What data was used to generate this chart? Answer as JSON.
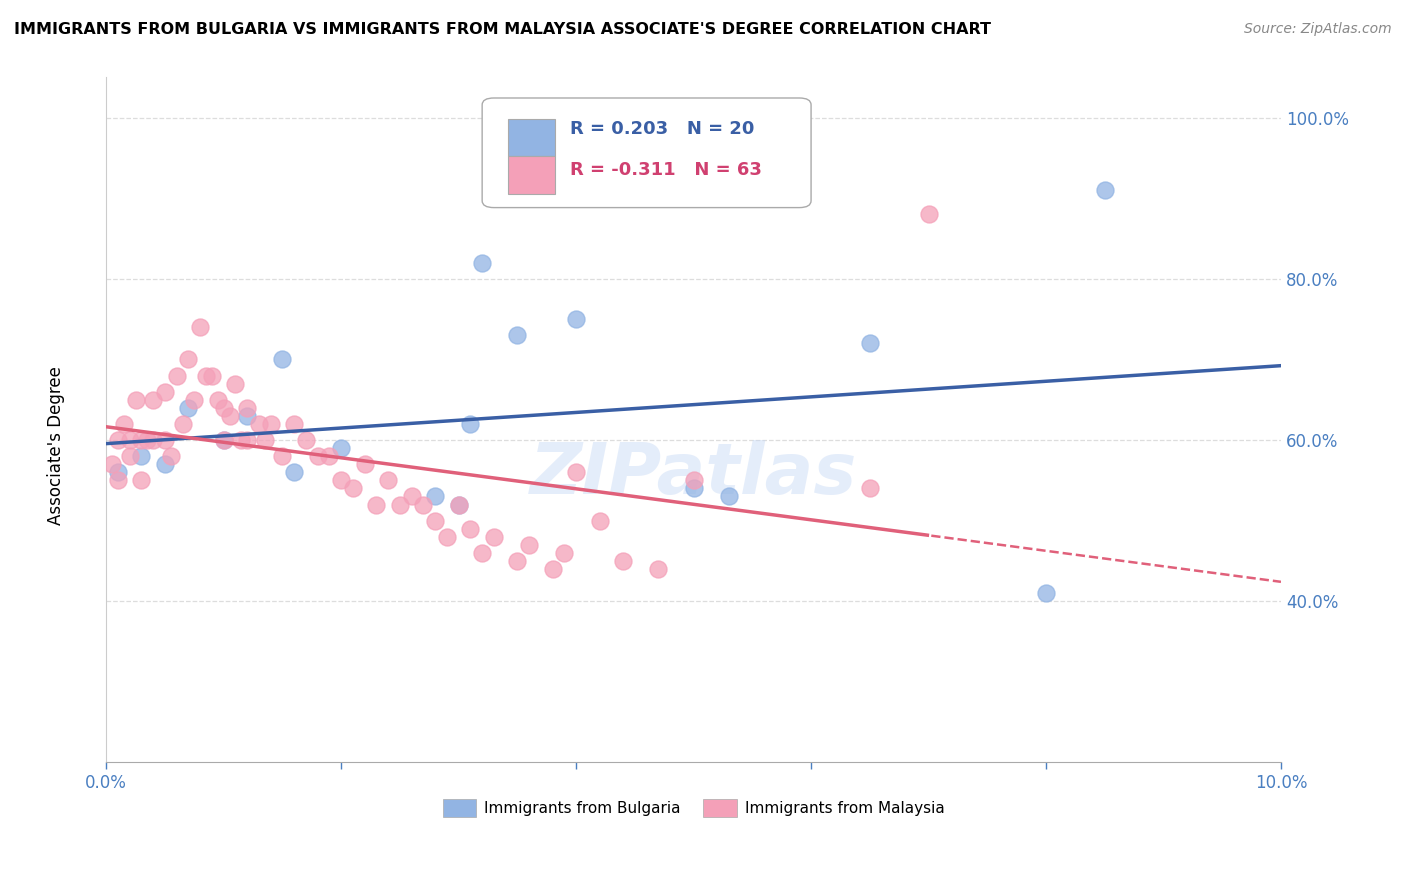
{
  "title": "IMMIGRANTS FROM BULGARIA VS IMMIGRANTS FROM MALAYSIA ASSOCIATE'S DEGREE CORRELATION CHART",
  "source": "Source: ZipAtlas.com",
  "ylabel": "Associate's Degree",
  "x_min": 0.0,
  "x_max": 10.0,
  "y_min": 20.0,
  "y_max": 105.0,
  "y_ticks": [
    40.0,
    60.0,
    80.0,
    100.0
  ],
  "x_ticks": [
    0.0,
    10.0
  ],
  "legend_R_blue": "R = 0.203",
  "legend_N_blue": "N = 20",
  "legend_R_pink": "R = -0.311",
  "legend_N_pink": "N = 63",
  "blue_color": "#92b4e3",
  "pink_color": "#f4a0b8",
  "blue_line_color": "#3a5fa5",
  "pink_line_color": "#e0607a",
  "watermark": "ZIPatlas",
  "blue_scatter_x": [
    0.1,
    0.3,
    0.5,
    0.7,
    1.0,
    1.2,
    1.5,
    1.6,
    2.0,
    2.8,
    3.0,
    3.1,
    3.2,
    3.5,
    4.0,
    5.0,
    5.3,
    6.5,
    8.0,
    8.5
  ],
  "blue_scatter_y": [
    56,
    58,
    57,
    64,
    60,
    63,
    70,
    56,
    59,
    53,
    52,
    62,
    82,
    73,
    75,
    54,
    53,
    72,
    41,
    91
  ],
  "pink_scatter_x": [
    0.05,
    0.1,
    0.1,
    0.15,
    0.2,
    0.2,
    0.25,
    0.3,
    0.3,
    0.35,
    0.4,
    0.4,
    0.5,
    0.5,
    0.55,
    0.6,
    0.65,
    0.7,
    0.75,
    0.8,
    0.85,
    0.9,
    0.95,
    1.0,
    1.0,
    1.05,
    1.1,
    1.15,
    1.2,
    1.2,
    1.3,
    1.35,
    1.4,
    1.5,
    1.6,
    1.7,
    1.8,
    1.9,
    2.0,
    2.1,
    2.2,
    2.3,
    2.4,
    2.5,
    2.6,
    2.7,
    2.8,
    2.9,
    3.0,
    3.1,
    3.2,
    3.3,
    3.5,
    3.6,
    3.8,
    3.9,
    4.0,
    4.2,
    4.4,
    4.7,
    5.0,
    6.5,
    7.0
  ],
  "pink_scatter_y": [
    57,
    60,
    55,
    62,
    60,
    58,
    65,
    60,
    55,
    60,
    65,
    60,
    66,
    60,
    58,
    68,
    62,
    70,
    65,
    74,
    68,
    68,
    65,
    64,
    60,
    63,
    67,
    60,
    64,
    60,
    62,
    60,
    62,
    58,
    62,
    60,
    58,
    58,
    55,
    54,
    57,
    52,
    55,
    52,
    53,
    52,
    50,
    48,
    52,
    49,
    46,
    48,
    45,
    47,
    44,
    46,
    56,
    50,
    45,
    44,
    55,
    54,
    88
  ]
}
